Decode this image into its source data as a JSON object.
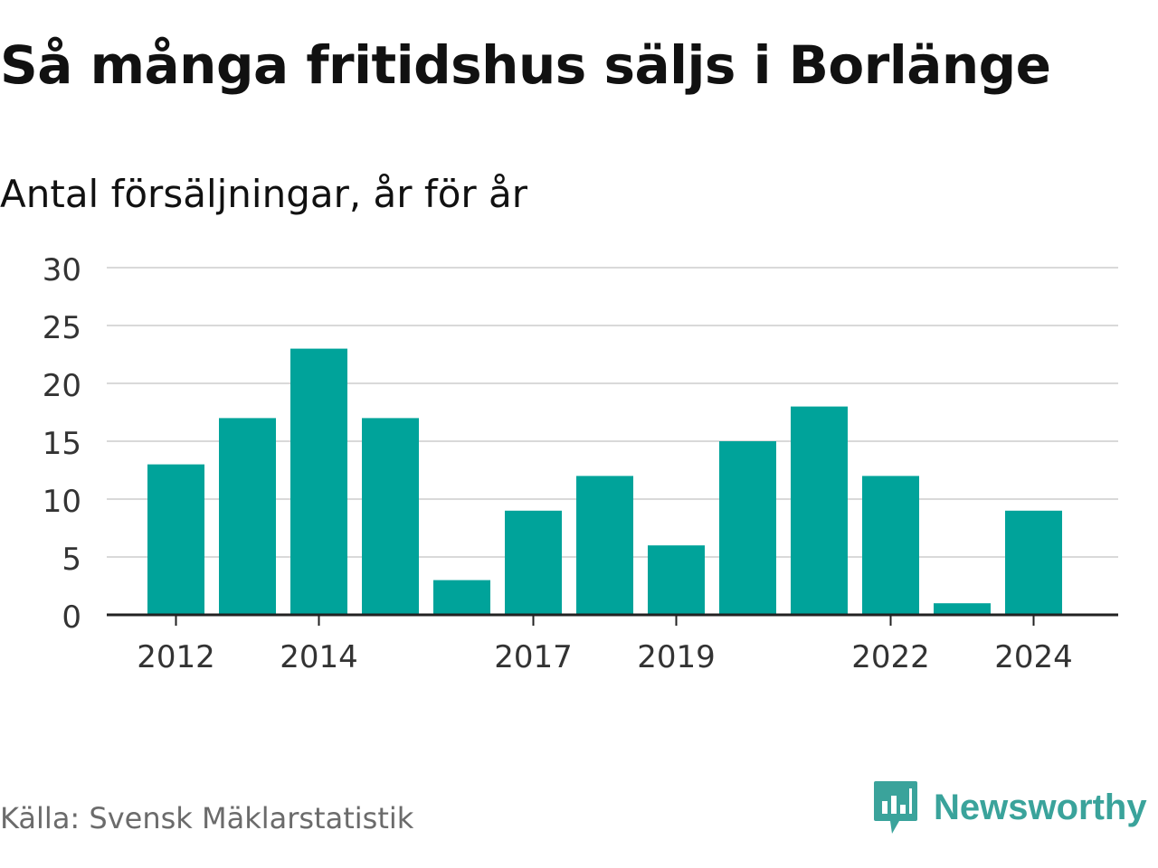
{
  "header": {
    "title": "Så många fritidshus säljs i Borlänge",
    "subtitle": "Antal försäljningar, år för år"
  },
  "footer": {
    "source": "Källa: Svensk Mäklarstatistik",
    "brand": "Newsworthy",
    "brand_icon": "newsworthy-logo-icon"
  },
  "colors": {
    "bar": "#00a39a",
    "grid": "#d9d9d9",
    "axis": "#222222",
    "brand": "#3aa39b"
  },
  "chart_data": {
    "type": "bar",
    "categories": [
      "2012",
      "2013",
      "2014",
      "2015",
      "2016",
      "2017",
      "2018",
      "2019",
      "2020",
      "2021",
      "2022",
      "2023",
      "2024"
    ],
    "values": [
      13,
      17,
      23,
      17,
      3,
      9,
      12,
      6,
      15,
      18,
      12,
      1,
      9
    ],
    "x_tick_labels": [
      "2012",
      "2014",
      "2017",
      "2019",
      "2022",
      "2024"
    ],
    "y_ticks": [
      0,
      5,
      10,
      15,
      20,
      25,
      30
    ],
    "ylim": [
      0,
      30
    ],
    "grid": true,
    "legend": "none"
  }
}
